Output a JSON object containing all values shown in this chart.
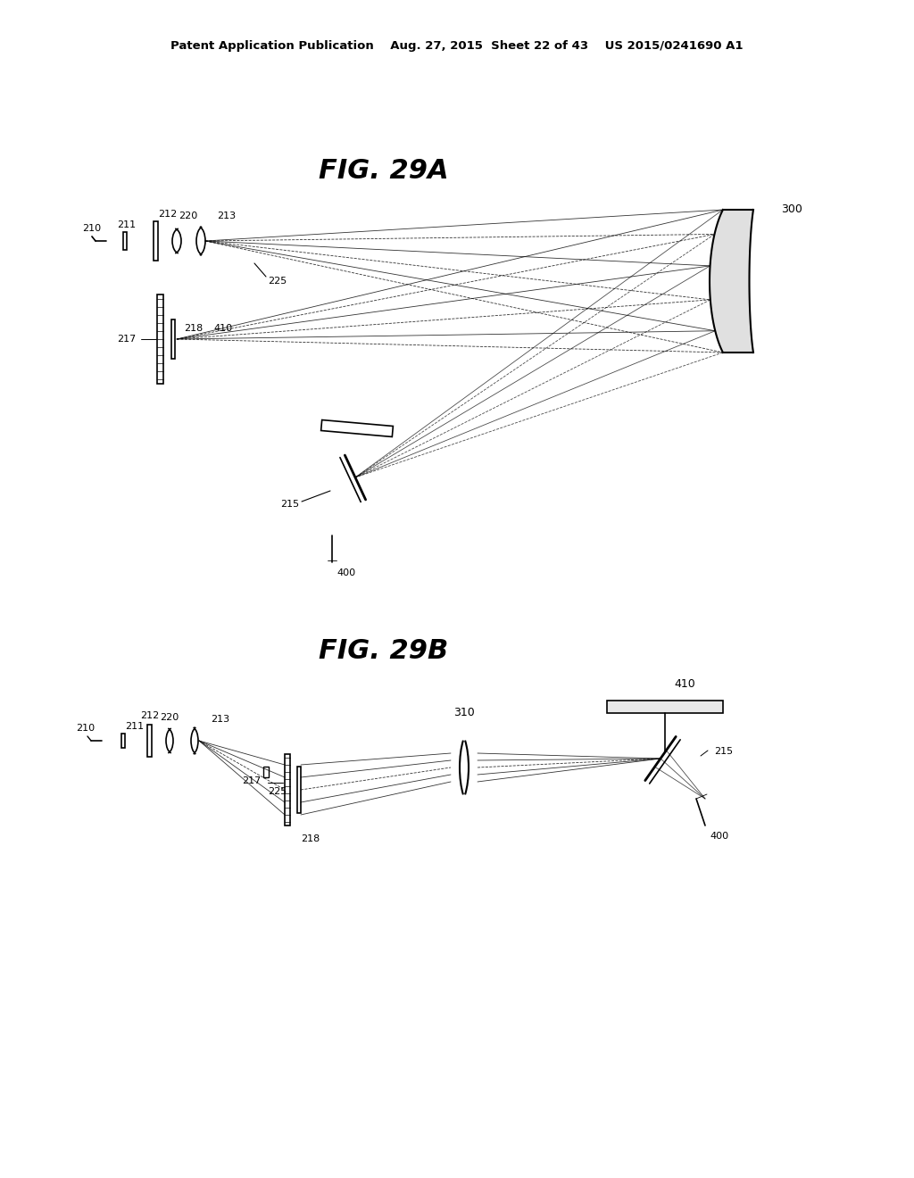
{
  "background_color": "#ffffff",
  "header": "Patent Application Publication    Aug. 27, 2015  Sheet 22 of 43    US 2015/0241690 A1",
  "fig29a_title": "FIG. 29A",
  "fig29b_title": "FIG. 29B"
}
